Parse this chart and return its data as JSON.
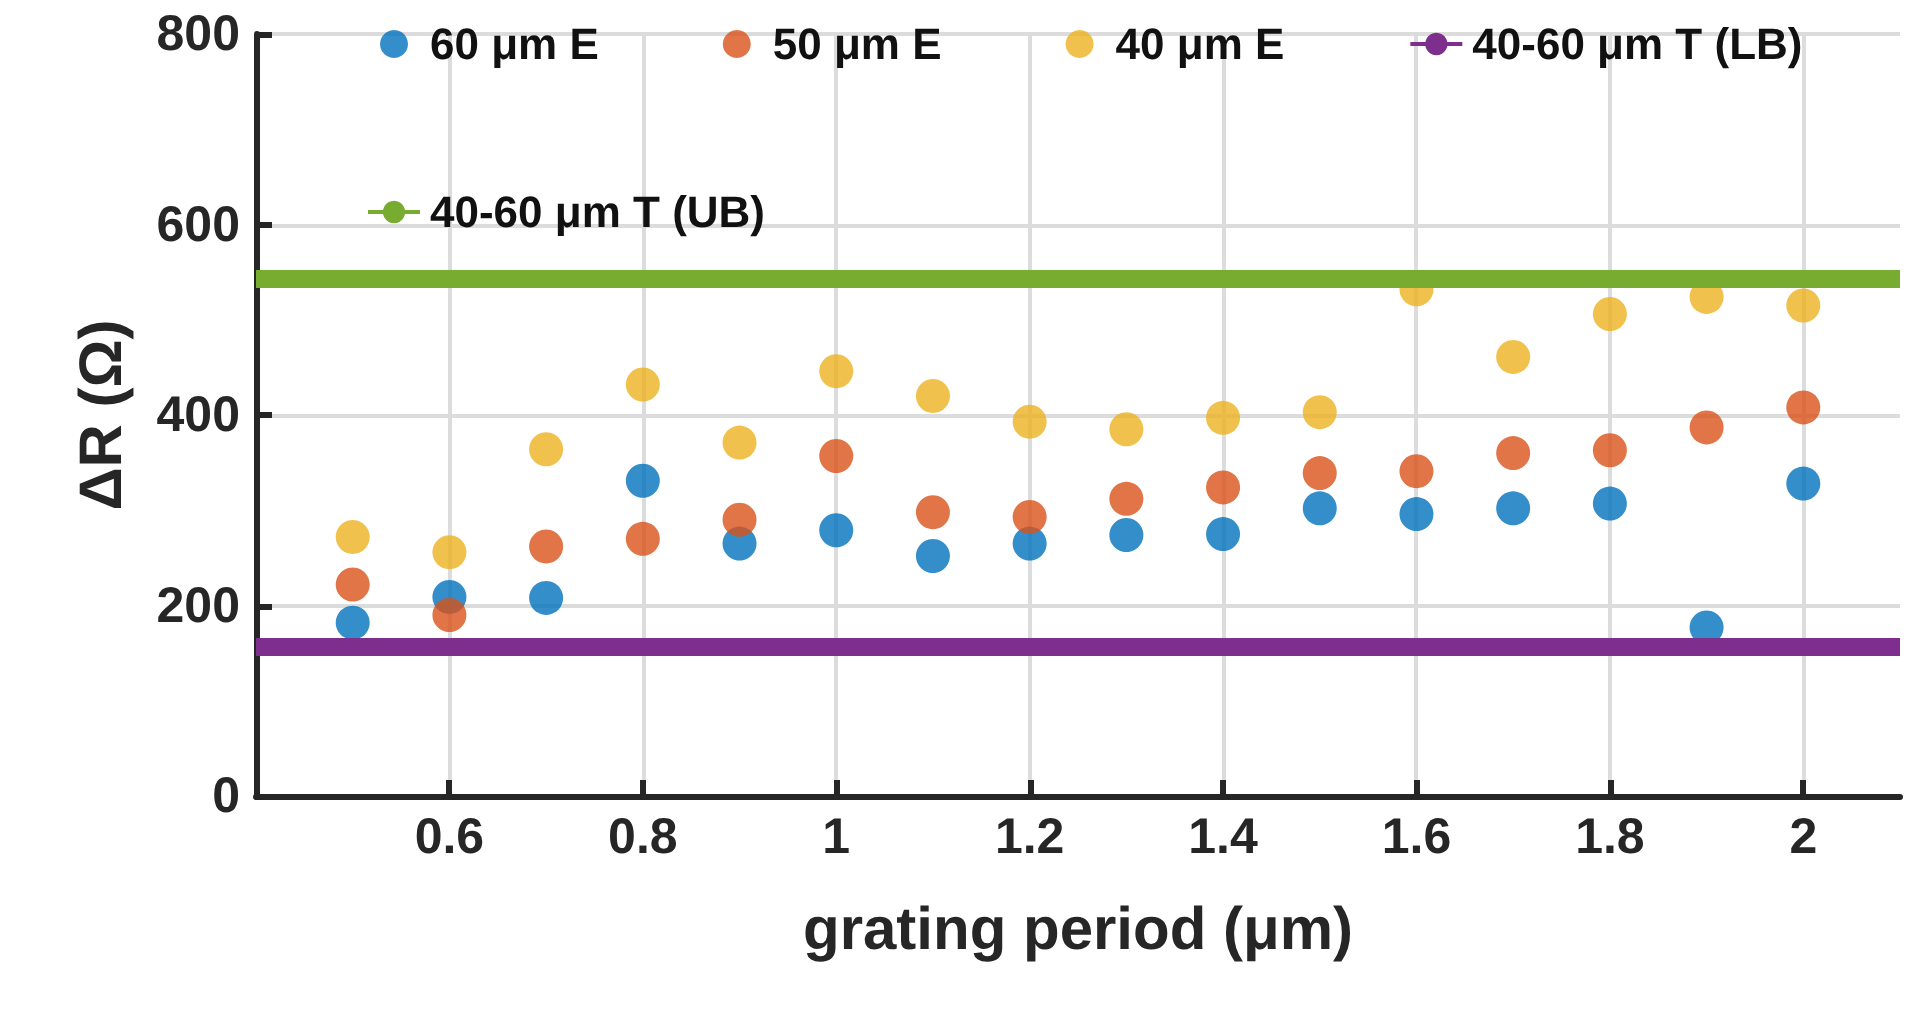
{
  "chart_data": {
    "type": "scatter",
    "xlabel": "grating period (μm)",
    "ylabel": "ΔR (Ω)",
    "xlim": [
      0.4,
      2.1
    ],
    "ylim": [
      0,
      800
    ],
    "xticks": [
      0.6,
      0.8,
      1,
      1.2,
      1.4,
      1.6,
      1.8,
      2
    ],
    "yticks": [
      0,
      200,
      400,
      600,
      800
    ],
    "x": [
      0.5,
      0.6,
      0.7,
      0.8,
      0.9,
      1.0,
      1.1,
      1.2,
      1.3,
      1.4,
      1.5,
      1.6,
      1.7,
      1.8,
      1.9,
      2.0
    ],
    "grid": true,
    "legend": "top",
    "marker": "circle",
    "series": [
      {
        "name": "60 μm E",
        "color": "#0072bd",
        "values": [
          182,
          209,
          208,
          331,
          265,
          279,
          252,
          265,
          274,
          275,
          302,
          296,
          302,
          307,
          177,
          328
        ]
      },
      {
        "name": "50 μm E",
        "color": "#d95319",
        "values": [
          222,
          190,
          262,
          270,
          290,
          357,
          298,
          293,
          312,
          324,
          339,
          341,
          360,
          363,
          387,
          408
        ]
      },
      {
        "name": "40 μm E",
        "color": "#edb120",
        "values": [
          272,
          256,
          364,
          432,
          371,
          446,
          420,
          393,
          385,
          397,
          403,
          532,
          461,
          506,
          524,
          515
        ]
      }
    ],
    "ref_lines": [
      {
        "axis": "y",
        "value": 158,
        "label": "40-60 μm T (LB)",
        "color": "#7e2f8e",
        "line_style": "solid"
      },
      {
        "axis": "y",
        "value": 544,
        "label": "40-60 μm T (UB)",
        "color": "#77ac30",
        "line_style": "solid"
      }
    ]
  }
}
